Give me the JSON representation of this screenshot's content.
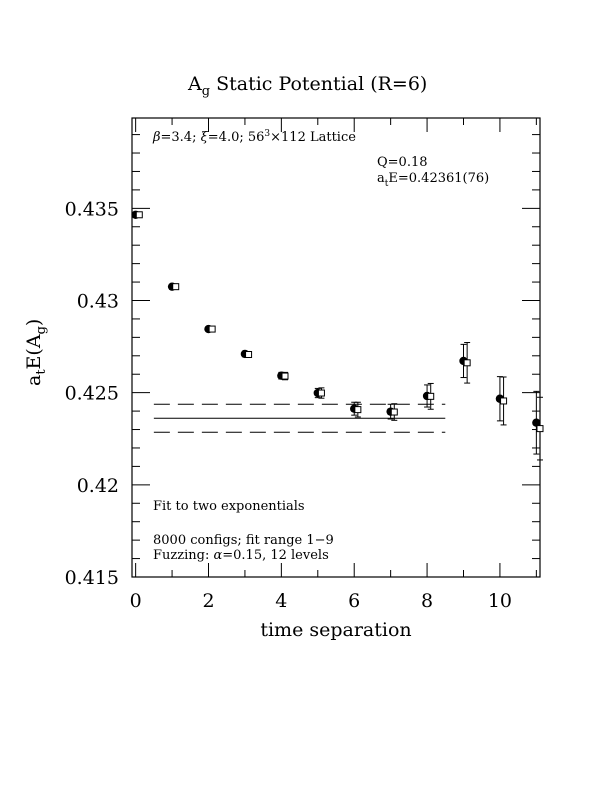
{
  "chart_data": {
    "type": "scatter",
    "title": "A",
    "title_sub": "g",
    "title_rest": " Static Potential (R=6)",
    "xlabel": "time separation",
    "ylabel_main": "a",
    "ylabel_sub1": "t",
    "ylabel_mid": "E(A",
    "ylabel_sub2": "g",
    "ylabel_end": ")",
    "xlim": [
      -0.1,
      11.1
    ],
    "ylim": [
      0.415,
      0.4399
    ],
    "x_ticks": [
      0,
      2,
      4,
      6,
      8,
      10
    ],
    "x_tick_labels": [
      "0",
      "2",
      "4",
      "6",
      "8",
      "10"
    ],
    "y_ticks": [
      0.415,
      0.42,
      0.425,
      0.43,
      0.435
    ],
    "y_tick_labels": [
      "0.415",
      "0.42",
      "0.425",
      "0.43",
      "0.435"
    ],
    "lattice_prefix": "=3.4; ",
    "lattice_mid": "=4.0; 56",
    "lattice_sup": "3",
    "lattice_suffix": "×112 Lattice",
    "fit_q": "Q=0.18",
    "fit_energy_prefix": "a",
    "fit_energy_sub": "t",
    "fit_energy_value": "E=0.42361(76)",
    "fit_method": "Fit to two exponentials",
    "configs_text": "8000 configs; fit range 1−9",
    "fuzzing_prefix": "Fuzzing: ",
    "fuzzing_suffix": "=0.15, 12 levels",
    "fit": {
      "value": 0.42361,
      "error": 0.00076,
      "x_start": 0.5,
      "x_end": 8.5
    },
    "series": [
      {
        "marker": "filled-circle",
        "points": [
          {
            "x": 0,
            "y": 0.43465,
            "err": 0.0001
          },
          {
            "x": 1,
            "y": 0.43075,
            "err": 0.00012
          },
          {
            "x": 2,
            "y": 0.42845,
            "err": 0.00012
          },
          {
            "x": 3,
            "y": 0.4271,
            "err": 0.00015
          },
          {
            "x": 4,
            "y": 0.42592,
            "err": 0.00018
          },
          {
            "x": 5,
            "y": 0.42498,
            "err": 0.00025
          },
          {
            "x": 6,
            "y": 0.42413,
            "err": 0.00035
          },
          {
            "x": 7,
            "y": 0.42397,
            "err": 0.0004
          },
          {
            "x": 8,
            "y": 0.42482,
            "err": 0.0006
          },
          {
            "x": 9,
            "y": 0.42672,
            "err": 0.0009
          },
          {
            "x": 10,
            "y": 0.42467,
            "err": 0.0012
          },
          {
            "x": 11,
            "y": 0.42337,
            "err": 0.0017
          }
        ]
      },
      {
        "marker": "open-square",
        "points": [
          {
            "x": 0.1,
            "y": 0.43465,
            "err": 0.0001
          },
          {
            "x": 1.1,
            "y": 0.43075,
            "err": 0.00012
          },
          {
            "x": 2.1,
            "y": 0.42845,
            "err": 0.00012
          },
          {
            "x": 3.1,
            "y": 0.42707,
            "err": 0.00015
          },
          {
            "x": 4.1,
            "y": 0.4259,
            "err": 0.0002
          },
          {
            "x": 5.1,
            "y": 0.42498,
            "err": 0.00028
          },
          {
            "x": 6.1,
            "y": 0.42408,
            "err": 0.0004
          },
          {
            "x": 7.1,
            "y": 0.42395,
            "err": 0.00045
          },
          {
            "x": 8.1,
            "y": 0.4248,
            "err": 0.0007
          },
          {
            "x": 9.1,
            "y": 0.42662,
            "err": 0.0011
          },
          {
            "x": 10.1,
            "y": 0.42455,
            "err": 0.0013
          },
          {
            "x": 11.1,
            "y": 0.42305,
            "err": 0.0017
          }
        ]
      }
    ]
  }
}
